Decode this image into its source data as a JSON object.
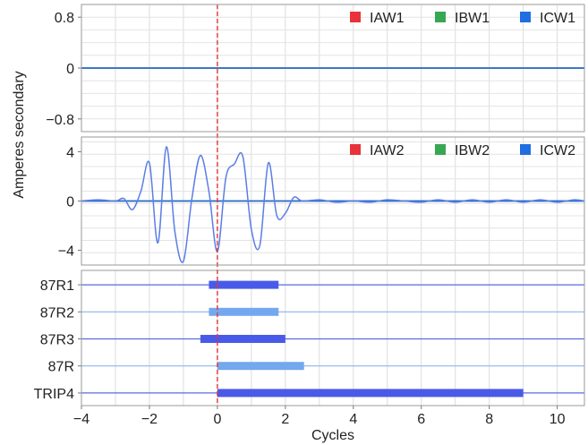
{
  "chart_data": {
    "type": "line",
    "ylabel": "Amperes secondary",
    "xlabel": "Cycles",
    "xlim": [
      -4,
      10.8
    ],
    "x_ticks": [
      -4,
      -2,
      0,
      2,
      4,
      6,
      8,
      10
    ],
    "x_tick_labels": [
      "−4",
      "−2",
      "0",
      "2",
      "4",
      "6",
      "8",
      "10"
    ],
    "grid": true,
    "trigger_line_x": 0,
    "colors": {
      "trigger": "#e8333a",
      "IAW": "#e8333a",
      "IBW": "#36a853",
      "ICW": "#1f6fe0",
      "wave2": "#5a7ee6",
      "wave1": "#3f78c6",
      "digital_dark": "#4a5ae8",
      "digital_light": "#74a8ee",
      "axis_line_dark": "#5a6ae0",
      "axis_line_light": "#8ab4ee"
    },
    "panels": [
      {
        "id": "panel1",
        "ylim": [
          -1.0,
          1.0
        ],
        "y_ticks": [
          0.8,
          0,
          -0.8
        ],
        "y_tick_labels": [
          "0.8",
          "0",
          "−0.8"
        ],
        "legend_position": "top-right",
        "series": [
          {
            "name": "IAW1",
            "color": "#e8333a",
            "x": [
              -4,
              10.8
            ],
            "y": [
              0,
              0
            ]
          },
          {
            "name": "IBW1",
            "color": "#36a853",
            "x": [
              -4,
              10.8
            ],
            "y": [
              0,
              0
            ]
          },
          {
            "name": "ICW1",
            "color": "#1f6fe0",
            "x": [
              -4,
              10.8
            ],
            "y": [
              0,
              0
            ]
          }
        ]
      },
      {
        "id": "panel2",
        "ylim": [
          -5.2,
          5.2
        ],
        "y_ticks": [
          4,
          0,
          -4
        ],
        "y_tick_labels": [
          "4",
          "0",
          "−4"
        ],
        "legend_position": "top-right",
        "series": [
          {
            "name": "IAW2",
            "color": "#e8333a",
            "x": [
              -4,
              10.8
            ],
            "y": [
              0,
              0
            ]
          },
          {
            "name": "IBW2",
            "color": "#36a853",
            "x": [
              -4,
              10.8
            ],
            "y": [
              0,
              0
            ]
          },
          {
            "name": "ICW2",
            "color": "#1f6fe0",
            "x": [
              -4,
              10.8
            ],
            "y": [
              0,
              0
            ]
          }
        ],
        "waveform": {
          "color": "#5a7ee6",
          "x": [
            -4.0,
            -3.5,
            -3.0,
            -2.75,
            -2.5,
            -2.25,
            -2.0,
            -1.75,
            -1.5,
            -1.25,
            -1.0,
            -0.75,
            -0.5,
            -0.25,
            0.0,
            0.25,
            0.5,
            0.75,
            1.0,
            1.25,
            1.5,
            1.75,
            2.0,
            2.25,
            2.5,
            3.0,
            3.5,
            4.0,
            4.5,
            5.0,
            5.5,
            6.0,
            6.5,
            7.0,
            7.5,
            8.0,
            8.5,
            9.0,
            9.5,
            10.0,
            10.5,
            10.8
          ],
          "y": [
            0.0,
            0.1,
            0.0,
            0.2,
            -0.7,
            0.8,
            3.1,
            -3.4,
            4.4,
            -2.5,
            -4.9,
            0.2,
            3.7,
            0.8,
            -4.1,
            1.9,
            3.0,
            3.6,
            -2.3,
            -3.6,
            3.1,
            -1.2,
            -1.0,
            0.3,
            0.0,
            0.1,
            -0.1,
            0.0,
            -0.1,
            0.1,
            0.0,
            -0.1,
            0.1,
            -0.1,
            0.1,
            -0.1,
            0.1,
            -0.1,
            0.1,
            -0.1,
            0.1,
            0.0
          ]
        }
      },
      {
        "id": "digital",
        "channels": [
          {
            "name": "87R1",
            "start": -0.25,
            "end": 1.8,
            "shade": "dark"
          },
          {
            "name": "87R2",
            "start": -0.25,
            "end": 1.8,
            "shade": "light"
          },
          {
            "name": "87R3",
            "start": -0.5,
            "end": 2.0,
            "shade": "dark"
          },
          {
            "name": "87R",
            "start": 0.0,
            "end": 2.55,
            "shade": "light"
          },
          {
            "name": "TRIP4",
            "start": 0.0,
            "end": 9.0,
            "shade": "dark"
          }
        ]
      }
    ]
  }
}
